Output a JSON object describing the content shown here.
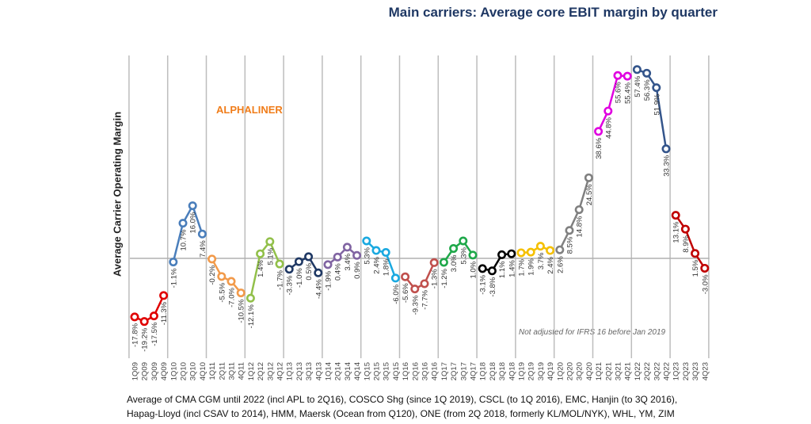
{
  "chart_data": {
    "type": "line",
    "title": "Main carriers: Average core EBIT margin by quarter",
    "ylabel": "Average Carrier Operating Margin",
    "xlabel": "",
    "watermark": "ALPHALINER",
    "note": "Not adjusted for IFRS 16 before Jan 2019",
    "footnote": [
      "Average of CMA CGM until 2022 (incl APL to 2Q16), COSCO Shg (since 1Q 2019), CSCL (to 1Q 2016), EMC, Hanjin (to 3Q 2016),",
      "Hapag-Lloyd (incl CSAV to 2014), HMM, Maersk (Ocean from Q120), ONE (from 2Q 2018, formerly KL/MOL/NYK), WHL, YM, ZIM"
    ],
    "grid": "vertical lines at year boundaries, horizontal zero line",
    "ylim": [
      -22,
      60
    ],
    "unit": "%",
    "series": [
      {
        "year": "2009",
        "color": "#e00000",
        "x": [
          "1Q09",
          "2Q09",
          "3Q09",
          "4Q09"
        ],
        "values": [
          -17.8,
          -19.2,
          -17.5,
          -11.3
        ]
      },
      {
        "year": "2010",
        "color": "#4a7ebb",
        "x": [
          "1Q10",
          "2Q10",
          "3Q10",
          "4Q10"
        ],
        "values": [
          -1.1,
          10.7,
          16.0,
          7.4
        ]
      },
      {
        "year": "2011",
        "color": "#f29a4a",
        "x": [
          "1Q11",
          "2Q11",
          "3Q11",
          "4Q11"
        ],
        "values": [
          -0.2,
          -5.5,
          -7.0,
          -10.5
        ]
      },
      {
        "year": "2012",
        "color": "#92c04a",
        "x": [
          "1Q12",
          "2Q12",
          "3Q12",
          "4Q12"
        ],
        "values": [
          -12.1,
          1.4,
          5.1,
          -1.7
        ]
      },
      {
        "year": "2013",
        "color": "#1f3864",
        "x": [
          "1Q13",
          "2Q13",
          "3Q13",
          "4Q13"
        ],
        "values": [
          -3.3,
          -1.0,
          0.5,
          -4.4
        ]
      },
      {
        "year": "2014",
        "color": "#8064a2",
        "x": [
          "1Q14",
          "2Q14",
          "3Q14",
          "4Q14"
        ],
        "values": [
          -1.9,
          0.4,
          3.4,
          0.9
        ]
      },
      {
        "year": "2015",
        "color": "#1aa9e0",
        "x": [
          "1Q15",
          "2Q15",
          "3Q15",
          "4Q15"
        ],
        "values": [
          5.3,
          2.4,
          1.8,
          -6.0
        ]
      },
      {
        "year": "2016",
        "color": "#c0504d",
        "x": [
          "1Q16",
          "2Q16",
          "3Q16",
          "4Q16"
        ],
        "values": [
          -5.6,
          -9.3,
          -7.7,
          -1.3
        ]
      },
      {
        "year": "2017",
        "color": "#1fa84a",
        "x": [
          "1Q17",
          "2Q17",
          "3Q17",
          "4Q17"
        ],
        "values": [
          -1.2,
          3.0,
          5.3,
          1.0
        ]
      },
      {
        "year": "2018",
        "color": "#000000",
        "x": [
          "1Q18",
          "2Q18",
          "3Q18",
          "4Q18"
        ],
        "values": [
          -3.1,
          -3.8,
          1.1,
          1.4
        ]
      },
      {
        "year": "2019",
        "color": "#f5c000",
        "x": [
          "1Q19",
          "2Q19",
          "3Q19",
          "4Q19"
        ],
        "values": [
          1.7,
          1.9,
          3.7,
          2.4
        ]
      },
      {
        "year": "2020",
        "color": "#808080",
        "x": [
          "1Q20",
          "2Q20",
          "3Q20",
          "4Q20"
        ],
        "values": [
          2.6,
          8.5,
          14.8,
          24.5
        ]
      },
      {
        "year": "2021",
        "color": "#e000e0",
        "x": [
          "1Q21",
          "2Q21",
          "3Q21",
          "4Q21"
        ],
        "values": [
          38.6,
          44.8,
          55.6,
          55.4
        ]
      },
      {
        "year": "2022",
        "color": "#34558b",
        "x": [
          "1Q22",
          "2Q22",
          "3Q22",
          "4Q22"
        ],
        "values": [
          57.4,
          56.3,
          51.9,
          33.3
        ]
      },
      {
        "year": "2023",
        "color": "#c00000",
        "x": [
          "1Q23",
          "2Q23",
          "3Q23",
          "4Q23"
        ],
        "values": [
          13.1,
          8.9,
          1.5,
          -3.0
        ]
      }
    ]
  }
}
